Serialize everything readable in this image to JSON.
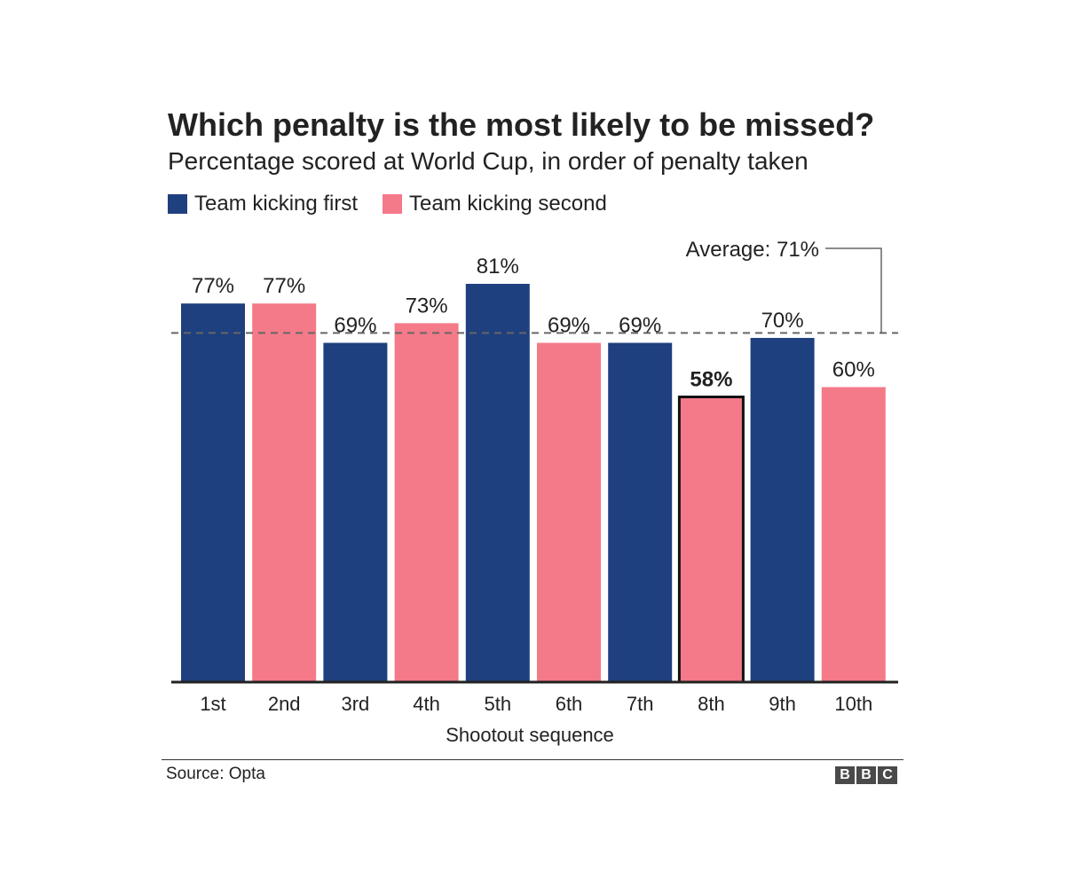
{
  "colors": {
    "first": "#1f407e",
    "second": "#f47a89",
    "text": "#222222",
    "axis": "#222222",
    "average_line": "#666666",
    "highlight_stroke": "#111111"
  },
  "legend": {
    "first": "Team kicking first",
    "second": "Team kicking second"
  },
  "footer": {
    "source": "Source: Opta",
    "logo_letters": [
      "B",
      "B",
      "C"
    ]
  },
  "chart_data": {
    "type": "bar",
    "title": "Which penalty is the most likely to be missed?",
    "subtitle": "Percentage scored at World Cup, in order of penalty taken",
    "xlabel": "Shootout sequence",
    "ylabel": "",
    "categories": [
      "1st",
      "2nd",
      "3rd",
      "4th",
      "5th",
      "6th",
      "7th",
      "8th",
      "9th",
      "10th"
    ],
    "values": [
      77,
      77,
      69,
      73,
      81,
      69,
      69,
      58,
      70,
      60
    ],
    "labels": [
      "77%",
      "77%",
      "69%",
      "73%",
      "81%",
      "69%",
      "69%",
      "58%",
      "70%",
      "60%"
    ],
    "team": [
      "first",
      "second",
      "first",
      "second",
      "first",
      "second",
      "first",
      "second",
      "first",
      "second"
    ],
    "highlight_index": 7,
    "average": {
      "value": 71,
      "label": "Average: 71%"
    },
    "ylim": [
      0,
      81
    ],
    "grid": false,
    "legend_position": "top-left"
  }
}
